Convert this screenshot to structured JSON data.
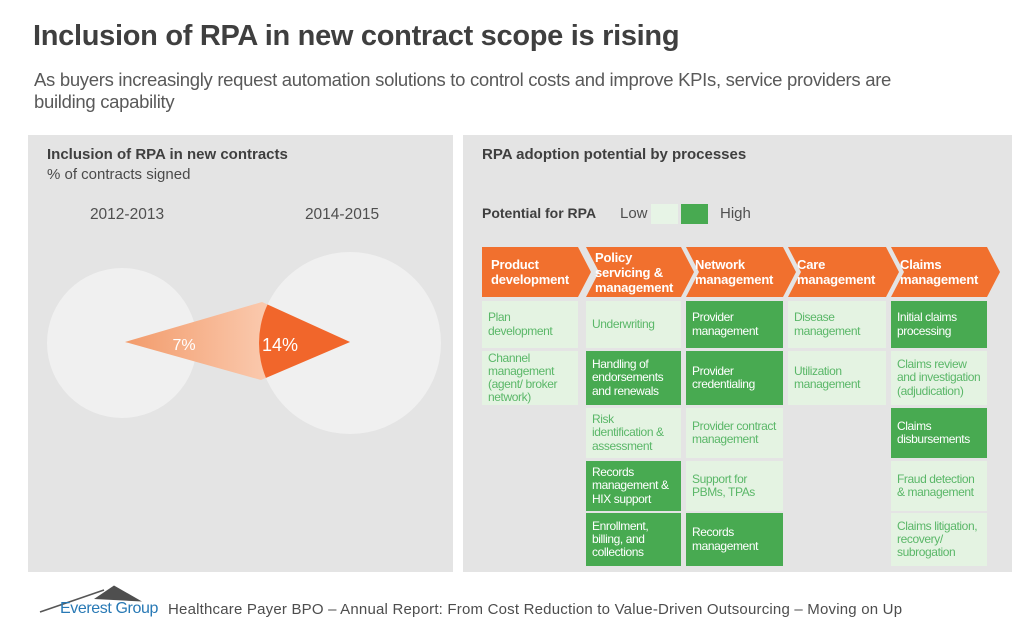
{
  "title": "Inclusion of RPA in new contract scope is rising",
  "subtitle": "As buyers increasingly request automation solutions to control costs and improve KPIs, service providers are\nbuilding capability",
  "colors": {
    "accent_orange": "#f1702e",
    "solid_arrow_orange": "#f1662b",
    "high_potential_green": "#48aa51",
    "low_potential_green": "#e4f3e2",
    "panel_gray": "#e4e4e4",
    "brand_blue": "#2879b5"
  },
  "chart_data": [
    {
      "type": "area",
      "title": "Inclusion of RPA in new contracts",
      "ylabel": "% of contracts signed",
      "categories": [
        "2012-2013",
        "2014-2015"
      ],
      "values": [
        7,
        14
      ],
      "value_labels": [
        "7%",
        "14%"
      ]
    },
    {
      "type": "table",
      "title": "RPA adoption potential by processes",
      "legend": {
        "label": "Potential for RPA",
        "low": "Low",
        "high": "High"
      },
      "columns": [
        "Product development",
        "Policy servicing & management",
        "Network management",
        "Care management",
        "Claims management"
      ],
      "cells": [
        [
          "Plan development:low",
          "Channel management (agent/ broker network):low"
        ],
        [
          "Underwriting:low",
          "Handling of endorsements and renewals:high",
          "Risk identification & assessment:low",
          "Records management & HIX support:high",
          "Enrollment, billing, and collections:high"
        ],
        [
          "Provider management:high",
          "Provider credentialing:high",
          "Provider contract management:low",
          "Support for PBMs, TPAs:low",
          "Records management:high"
        ],
        [
          "Disease management:low",
          "Utilization management:low"
        ],
        [
          "Initial claims processing:high",
          "Claims review and investigation (adjudication):low",
          "Claims disbursements:high",
          "Fraud detection & management:low",
          "Claims litigation, recovery/ subrogation:low"
        ]
      ]
    }
  ],
  "left_panel": {
    "title": "Inclusion of RPA in new contracts",
    "subtitle": "% of contracts signed",
    "periods": [
      {
        "label": "2012-2013",
        "value": 7,
        "value_label": "7%"
      },
      {
        "label": "2014-2015",
        "value": 14,
        "value_label": "14%"
      }
    ]
  },
  "right_panel": {
    "title": "RPA adoption potential by processes",
    "legend": {
      "label": "Potential for RPA",
      "low_label": "Low",
      "high_label": "High"
    },
    "columns": [
      {
        "header": "Product development",
        "cells": [
          {
            "row": 0,
            "text": "Plan development",
            "potential": "low"
          },
          {
            "row": 1,
            "text": "Channel management (agent/ broker network)",
            "potential": "low"
          }
        ]
      },
      {
        "header": "Policy servicing & management",
        "cells": [
          {
            "row": 0,
            "text": "Underwriting",
            "potential": "low"
          },
          {
            "row": 1,
            "text": "Handling of endorsements and renewals",
            "potential": "high"
          },
          {
            "row": 2,
            "text": "Risk identification & assessment",
            "potential": "low"
          },
          {
            "row": 3,
            "text": "Records management & HIX support",
            "potential": "high"
          },
          {
            "row": 4,
            "text": "Enrollment, billing, and collections",
            "potential": "high"
          }
        ]
      },
      {
        "header": "Network management",
        "cells": [
          {
            "row": 0,
            "text": "Provider management",
            "potential": "high"
          },
          {
            "row": 1,
            "text": "Provider credentialing",
            "potential": "high"
          },
          {
            "row": 2,
            "text": "Provider contract management",
            "potential": "low"
          },
          {
            "row": 3,
            "text": "Support for PBMs, TPAs",
            "potential": "low"
          },
          {
            "row": 4,
            "text": "Records management",
            "potential": "high"
          }
        ]
      },
      {
        "header": "Care management",
        "cells": [
          {
            "row": 0,
            "text": "Disease management",
            "potential": "low"
          },
          {
            "row": 1,
            "text": "Utilization management",
            "potential": "low"
          }
        ]
      },
      {
        "header": "Claims management",
        "cells": [
          {
            "row": 0,
            "text": "Initial claims processing",
            "potential": "high"
          },
          {
            "row": 1,
            "text": "Claims review and investigation (adjudication)",
            "potential": "low"
          },
          {
            "row": 2,
            "text": "Claims disbursements",
            "potential": "high"
          },
          {
            "row": 3,
            "text": "Fraud detection & management",
            "potential": "low"
          },
          {
            "row": 4,
            "text": "Claims litigation, recovery/ subrogation",
            "potential": "low"
          }
        ]
      }
    ]
  },
  "footer": {
    "brand": "Everest Group",
    "report_line": "Healthcare Payer BPO – Annual Report: From Cost Reduction to Value-Driven Outsourcing – Moving on Up"
  }
}
